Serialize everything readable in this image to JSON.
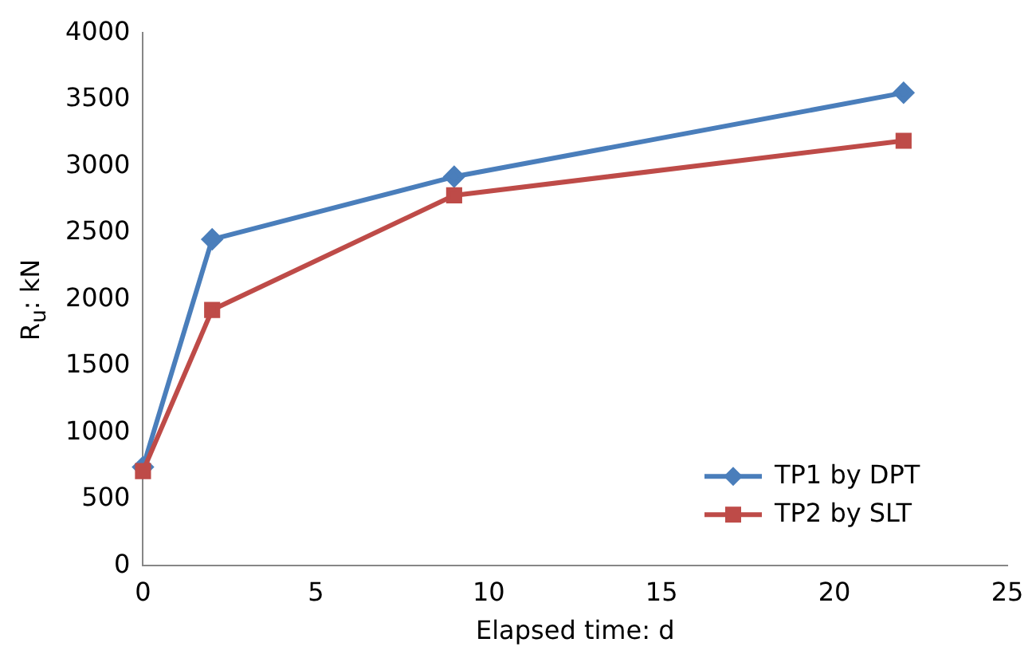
{
  "chart_data": {
    "type": "line",
    "xlabel": "Elapsed time: d",
    "ylabel": "R$_{u}$: kN",
    "xlim": [
      0,
      25
    ],
    "xticks": [
      0,
      5,
      10,
      15,
      20,
      25
    ],
    "ylim": [
      0,
      4000
    ],
    "yticks": [
      0,
      500,
      1000,
      1500,
      2000,
      2500,
      3000,
      3500,
      4000
    ],
    "grid": false,
    "legend": "bottom right",
    "line_style": "solid",
    "series": [
      {
        "name": "TP1 by DPT",
        "color": "#4a7ebb",
        "marker": "diamond",
        "x": [
          0,
          2,
          9,
          22
        ],
        "values": [
          740,
          2450,
          2920,
          3550
        ]
      },
      {
        "name": "TP2 by SLT",
        "color": "#be4b48",
        "marker": "square",
        "x": [
          0,
          2,
          9,
          22
        ],
        "values": [
          710,
          1920,
          2780,
          3190
        ]
      }
    ]
  }
}
